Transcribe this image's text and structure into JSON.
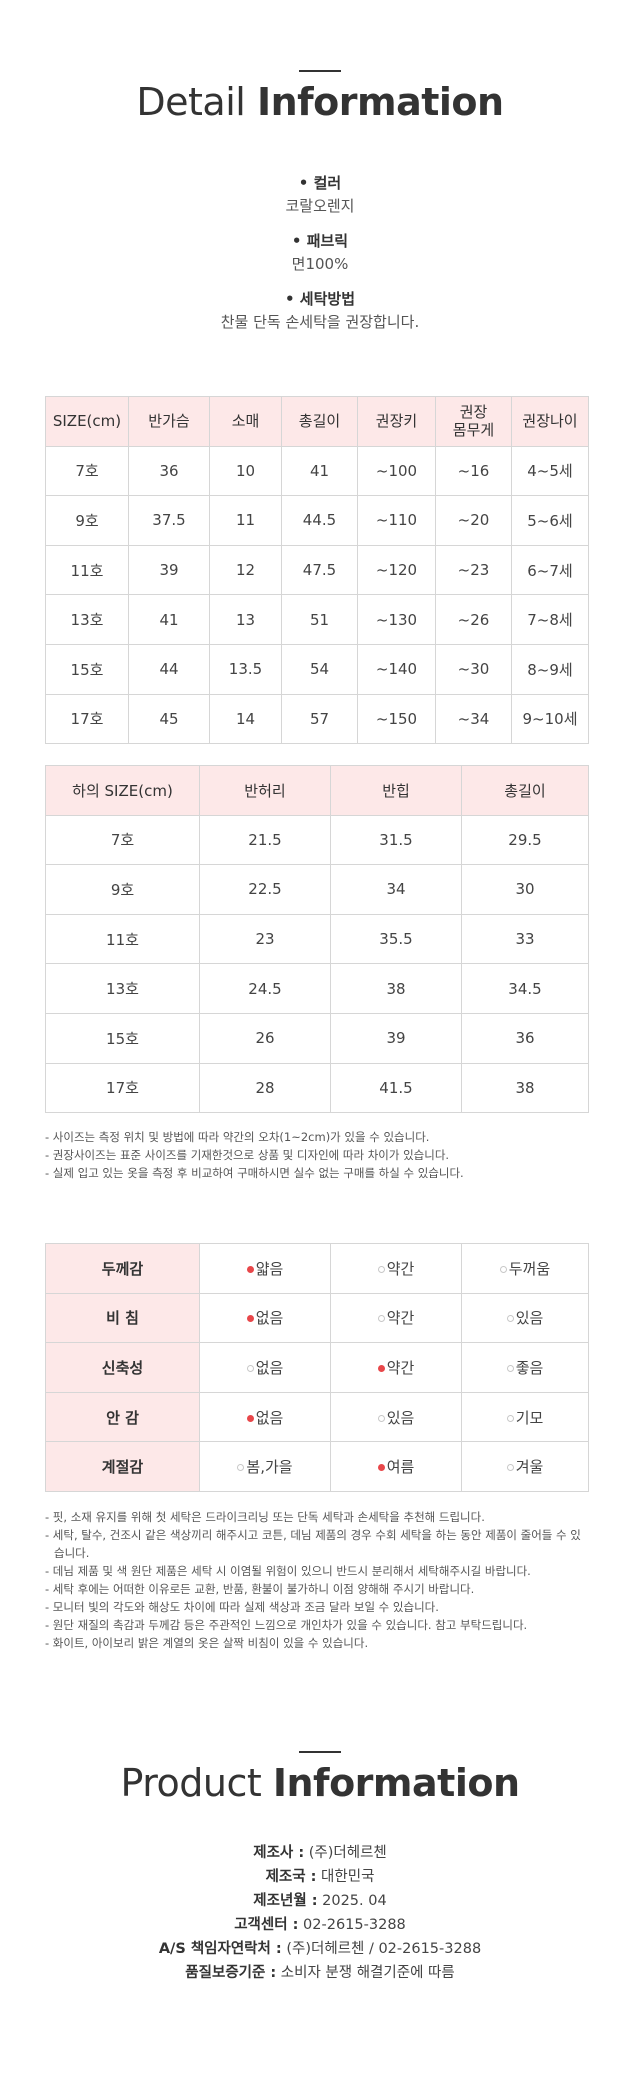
{
  "detail_title": {
    "light": "Detail",
    "bold": "Information"
  },
  "specs": [
    {
      "label": "• 컬러",
      "value": "코랄오렌지"
    },
    {
      "label": "• 패브릭",
      "value": "면100%"
    },
    {
      "label": "• 세탁방법",
      "value": "찬물 단독 손세탁을 권장합니다."
    }
  ],
  "top_table": {
    "header": [
      [
        "SIZE(cm)"
      ],
      [
        "반가슴"
      ],
      [
        "소매"
      ],
      [
        "총길이"
      ],
      [
        "권장키"
      ],
      [
        "권장",
        "몸무게"
      ],
      [
        "권장나이"
      ]
    ],
    "rows": [
      [
        "7호",
        "36",
        "10",
        "41",
        "~100",
        "~16",
        "4~5세"
      ],
      [
        "9호",
        "37.5",
        "11",
        "44.5",
        "~110",
        "~20",
        "5~6세"
      ],
      [
        "11호",
        "39",
        "12",
        "47.5",
        "~120",
        "~23",
        "6~7세"
      ],
      [
        "13호",
        "41",
        "13",
        "51",
        "~130",
        "~26",
        "7~8세"
      ],
      [
        "15호",
        "44",
        "13.5",
        "54",
        "~140",
        "~30",
        "8~9세"
      ],
      [
        "17호",
        "45",
        "14",
        "57",
        "~150",
        "~34",
        "9~10세"
      ]
    ]
  },
  "bottom_table": {
    "header": [
      "하의 SIZE(cm)",
      "반허리",
      "반힙",
      "총길이"
    ],
    "rows": [
      [
        "7호",
        "21.5",
        "31.5",
        "29.5"
      ],
      [
        "9호",
        "22.5",
        "34",
        "30"
      ],
      [
        "11호",
        "23",
        "35.5",
        "33"
      ],
      [
        "13호",
        "24.5",
        "38",
        "34.5"
      ],
      [
        "15호",
        "26",
        "39",
        "36"
      ],
      [
        "17호",
        "28",
        "41.5",
        "38"
      ]
    ]
  },
  "size_notes": [
    "- 사이즈는 측정 위치 및 방법에 따라 약간의 오차(1~2cm)가 있을 수 있습니다.",
    "- 권장사이즈는 표준 사이즈를 기재한것으로 상품 및 디자인에 따라 차이가 있습니다.",
    "- 실제 입고 있는 옷을 측정 후 비교하여 구매하시면 실수 없는 구매를 하실 수 있습니다."
  ],
  "feel_table": [
    {
      "label": "두께감",
      "options": [
        {
          "text": "얇음",
          "selected": true
        },
        {
          "text": "약간",
          "selected": false
        },
        {
          "text": "두꺼움",
          "selected": false
        }
      ]
    },
    {
      "label": "비 침",
      "options": [
        {
          "text": "없음",
          "selected": true
        },
        {
          "text": "약간",
          "selected": false
        },
        {
          "text": "있음",
          "selected": false
        }
      ]
    },
    {
      "label": "신축성",
      "options": [
        {
          "text": "없음",
          "selected": false
        },
        {
          "text": "약간",
          "selected": true
        },
        {
          "text": "좋음",
          "selected": false
        }
      ]
    },
    {
      "label": "안 감",
      "options": [
        {
          "text": "없음",
          "selected": true
        },
        {
          "text": "있음",
          "selected": false
        },
        {
          "text": "기모",
          "selected": false
        }
      ]
    },
    {
      "label": "계절감",
      "options": [
        {
          "text": "봄,가을",
          "selected": false
        },
        {
          "text": "여름",
          "selected": true
        },
        {
          "text": "겨울",
          "selected": false
        }
      ]
    }
  ],
  "care_notes": [
    "- 핏, 소재 유지를 위해 첫 세탁은 드라이크리닝 또는 단독 세탁과 손세탁을 추천해 드립니다.",
    "- 세탁, 탈수, 건조시 같은 색상끼리 해주시고 코튼, 데님 제품의 경우 수회 세탁을 하는 동안 제품이 줄어들 수 있습니다.",
    "- 데님 제품 및 색 원단 제품은 세탁 시 이염될 위험이 있으니 반드시 분리해서 세탁해주시길 바랍니다.",
    "- 세탁 후에는 어떠한 이유로든 교환, 반품, 환불이 불가하니 이점 양해해 주시기 바랍니다.",
    "- 모니터 빛의 각도와 해상도 차이에 따라 실제 색상과 조금 달라 보일 수 있습니다.",
    "- 원단 재질의 촉감과 두께감 등은 주관적인 느낌으로 개인차가 있을 수 있습니다. 참고 부탁드립니다.",
    "- 화이트, 아이보리 밝은 계열의 옷은 살짝 비침이 있을 수 있습니다."
  ],
  "product_title": {
    "light": "Product",
    "bold": "Information"
  },
  "product_info": [
    {
      "label": "제조사 :",
      "value": "(주)더헤르첸"
    },
    {
      "label": "제조국 :",
      "value": "대한민국"
    },
    {
      "label": "제조년월 :",
      "value": "2025. 04"
    },
    {
      "label": "고객센터 :",
      "value": "02-2615-3288"
    },
    {
      "label": "A/S 책임자연락처 :",
      "value": "(주)더헤르첸 / 02-2615-3288"
    },
    {
      "label": "품질보증기준 :",
      "value": "소비자 분쟁 해결기준에 따름"
    }
  ]
}
